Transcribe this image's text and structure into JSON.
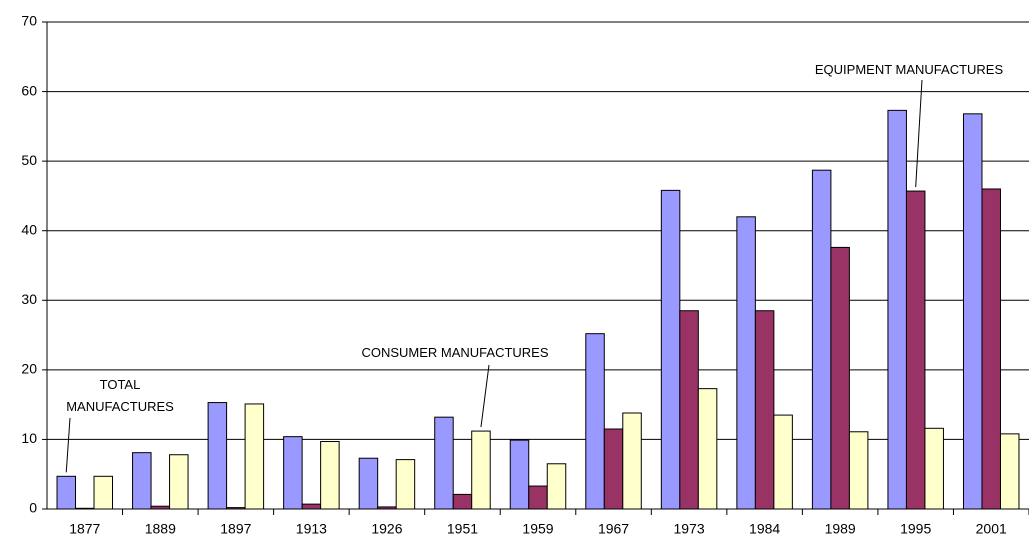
{
  "chart_data": {
    "type": "bar",
    "categories": [
      "1877",
      "1889",
      "1897",
      "1913",
      "1926",
      "1951",
      "1959",
      "1967",
      "1973",
      "1984",
      "1989",
      "1995",
      "2001"
    ],
    "series": [
      {
        "name": "TOTAL MANUFACTURES",
        "color": "#9999ff",
        "values": [
          4.7,
          8.1,
          15.3,
          10.4,
          7.3,
          13.2,
          9.9,
          25.2,
          45.8,
          42.0,
          48.7,
          57.3,
          56.8
        ]
      },
      {
        "name": "EQUIPMENT MANUFACTURES",
        "color": "#993366",
        "values": [
          0.1,
          0.4,
          0.2,
          0.7,
          0.3,
          2.1,
          3.3,
          11.5,
          28.5,
          28.5,
          37.6,
          45.7,
          46.0
        ]
      },
      {
        "name": "CONSUMER MANUFACTURES",
        "color": "#ffffcc",
        "values": [
          4.7,
          7.8,
          15.1,
          9.7,
          7.1,
          11.2,
          6.5,
          13.8,
          17.3,
          13.5,
          11.1,
          11.6,
          10.8
        ]
      }
    ],
    "ylim": [
      0,
      70
    ],
    "yticks": [
      0,
      10,
      20,
      30,
      40,
      50,
      60,
      70
    ],
    "grid": true
  }
}
